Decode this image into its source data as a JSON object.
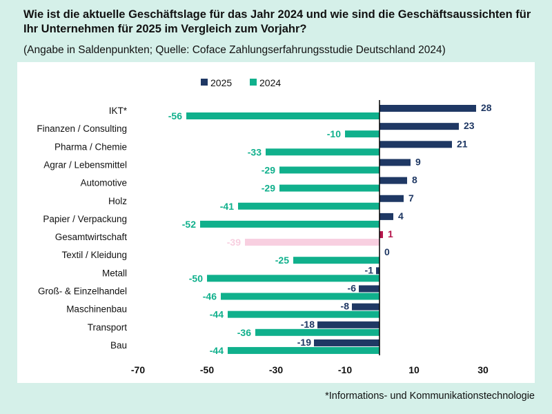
{
  "header": {
    "title": "Wie ist die aktuelle Geschäftslage für das Jahr 2024 und wie sind die Geschäftsaussichten für Ihr Unternehmen für 2025 im Vergleich zum Vorjahr?",
    "subtitle": "(Angabe in Saldenpunkten; Quelle: Coface Zahlungserfahrungsstudie Deutschland 2024)"
  },
  "footnote": "*Informations- und Kommunikationstechnologie",
  "colors": {
    "background": "#d5f0e9",
    "s2025": "#1f3864",
    "s2024": "#10b08c",
    "highlight2025": "#b5154b",
    "highlight2024": "#f8cfe0"
  },
  "chart_data": {
    "type": "bar",
    "orientation": "horizontal",
    "categories": [
      "IKT*",
      "Finanzen / Consulting",
      "Pharma / Chemie",
      "Agrar / Lebensmittel",
      "Automotive",
      "Holz",
      "Papier / Verpackung",
      "Gesamtwirtschaft",
      "Textil / Kleidung",
      "Metall",
      "Groß- & Einzelhandel",
      "Maschinenbau",
      "Transport",
      "Bau"
    ],
    "series": [
      {
        "name": "2025",
        "values": [
          28,
          23,
          21,
          9,
          8,
          7,
          4,
          1,
          0,
          -1,
          -6,
          -8,
          -18,
          -19
        ]
      },
      {
        "name": "2024",
        "values": [
          -56,
          -10,
          -33,
          -29,
          -29,
          -41,
          -52,
          -39,
          -25,
          -50,
          -46,
          -44,
          -36,
          -44
        ]
      }
    ],
    "highlight_category": "Gesamtwirtschaft",
    "xlim": [
      -70,
      30
    ],
    "xticks": [
      "-70",
      "-50",
      "-30",
      "-10",
      "10",
      "30"
    ],
    "grid": false,
    "legend": "top"
  }
}
